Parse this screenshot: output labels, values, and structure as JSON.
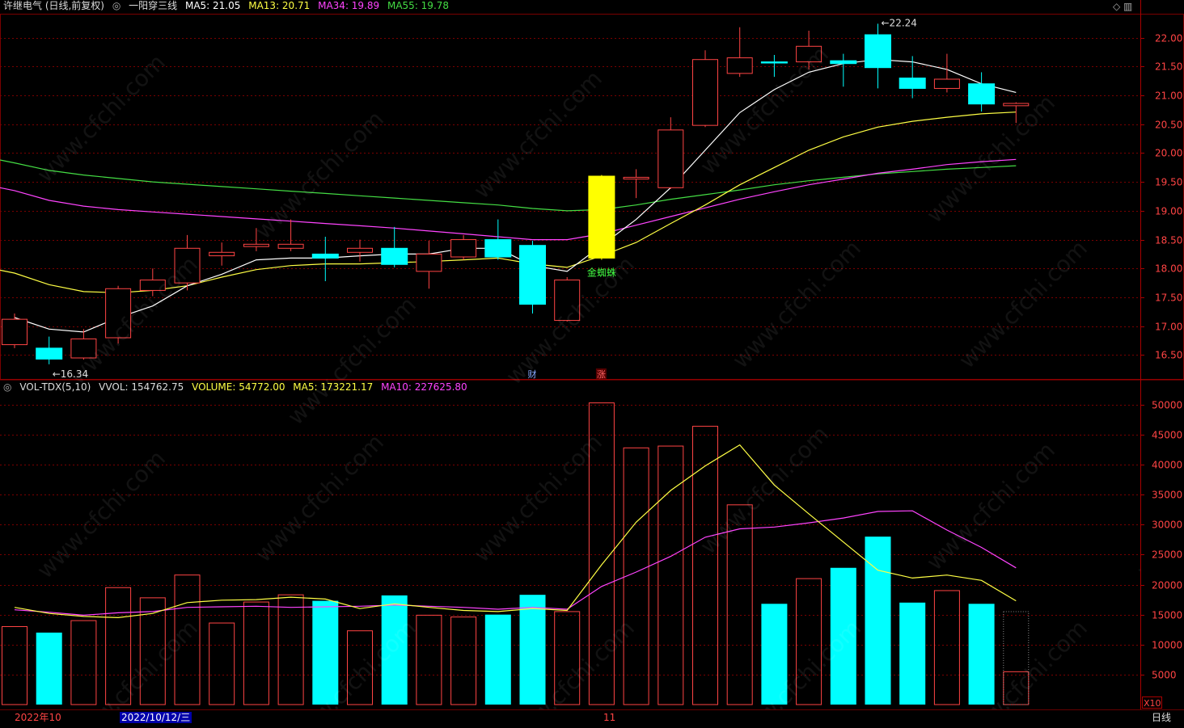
{
  "header": {
    "stock_name": "许继电气 (日线,前复权)",
    "indicator_name": "一阳穿三线",
    "ma5_label": "MA5: 21.05",
    "ma13_label": "MA13: 20.71",
    "ma34_label": "MA34: 19.89",
    "ma55_label": "MA55: 19.78",
    "ctrl_glyphs": "◇ ▥"
  },
  "volume_header": {
    "name": "VOL-TDX(5,10)",
    "vvol": "VVOL: 154762.75",
    "volume": "VOLUME: 54772.00",
    "ma5": "MA5: 173221.17",
    "ma10": "MA10: 227625.80"
  },
  "annotations": {
    "high": "22.24",
    "low": "16.34",
    "signal": "金蜘蛛",
    "marker_cai": "财",
    "marker_zhang": "涨"
  },
  "colors": {
    "up": "#ff4444",
    "down": "#00ffff",
    "signal_bar": "#ffff00",
    "ma5": "#ffffff",
    "ma13": "#ffff44",
    "ma34": "#ff44ff",
    "ma55": "#44dd44",
    "grid": "#7a0000",
    "axis_text": "#ff4444"
  },
  "price_axis": [
    "22.00",
    "21.50",
    "21.00",
    "20.50",
    "20.00",
    "19.50",
    "19.00",
    "18.50",
    "18.00",
    "17.50",
    "17.00",
    "16.50"
  ],
  "volume_axis": [
    "50000",
    "45000",
    "40000",
    "35000",
    "30000",
    "25000",
    "20000",
    "15000",
    "10000",
    "5000"
  ],
  "volume_unit": "X10",
  "bottom": {
    "month_label": "2022年10",
    "date_label": "2022/10/12/三",
    "nov_label": "11",
    "period": "日线"
  },
  "watermark": "www.cfchi.com",
  "chart_data": {
    "type": "candlestick",
    "candles": [
      {
        "o": 16.68,
        "h": 17.22,
        "l": 16.62,
        "c": 17.12
      },
      {
        "o": 16.62,
        "h": 16.82,
        "l": 16.34,
        "c": 16.43
      },
      {
        "o": 16.45,
        "h": 16.95,
        "l": 16.42,
        "c": 16.78
      },
      {
        "o": 16.8,
        "h": 17.7,
        "l": 16.7,
        "c": 17.65
      },
      {
        "o": 17.62,
        "h": 18.0,
        "l": 17.52,
        "c": 17.8
      },
      {
        "o": 17.75,
        "h": 18.58,
        "l": 17.62,
        "c": 18.35
      },
      {
        "o": 18.22,
        "h": 18.45,
        "l": 18.05,
        "c": 18.28
      },
      {
        "o": 18.38,
        "h": 18.7,
        "l": 18.3,
        "c": 18.42
      },
      {
        "o": 18.35,
        "h": 18.85,
        "l": 18.3,
        "c": 18.42
      },
      {
        "o": 18.25,
        "h": 18.55,
        "l": 17.78,
        "c": 18.18
      },
      {
        "o": 18.28,
        "h": 18.5,
        "l": 18.12,
        "c": 18.35
      },
      {
        "o": 18.35,
        "h": 18.72,
        "l": 18.02,
        "c": 18.07
      },
      {
        "o": 17.95,
        "h": 18.48,
        "l": 17.65,
        "c": 18.25
      },
      {
        "o": 18.2,
        "h": 18.58,
        "l": 18.15,
        "c": 18.5
      },
      {
        "o": 18.5,
        "h": 18.85,
        "l": 18.15,
        "c": 18.2
      },
      {
        "o": 18.4,
        "h": 18.48,
        "l": 17.22,
        "c": 17.38
      },
      {
        "o": 17.1,
        "h": 17.85,
        "l": 17.08,
        "c": 17.8
      },
      {
        "o": 18.18,
        "h": 19.62,
        "l": 18.15,
        "c": 19.6
      },
      {
        "o": 19.55,
        "h": 19.72,
        "l": 19.22,
        "c": 19.58
      },
      {
        "o": 19.4,
        "h": 20.62,
        "l": 19.38,
        "c": 20.4
      },
      {
        "o": 20.48,
        "h": 21.78,
        "l": 20.45,
        "c": 21.62
      },
      {
        "o": 21.38,
        "h": 22.18,
        "l": 21.32,
        "c": 21.65
      },
      {
        "o": 21.58,
        "h": 21.7,
        "l": 21.32,
        "c": 21.56
      },
      {
        "o": 21.58,
        "h": 22.12,
        "l": 21.45,
        "c": 21.85
      },
      {
        "o": 21.6,
        "h": 21.72,
        "l": 21.15,
        "c": 21.55
      },
      {
        "o": 22.05,
        "h": 22.24,
        "l": 21.12,
        "c": 21.48
      },
      {
        "o": 21.3,
        "h": 21.68,
        "l": 20.95,
        "c": 21.12
      },
      {
        "o": 21.12,
        "h": 21.72,
        "l": 21.05,
        "c": 21.28
      },
      {
        "o": 21.2,
        "h": 21.4,
        "l": 20.72,
        "c": 20.85
      },
      {
        "o": 20.82,
        "h": 20.88,
        "l": 20.52,
        "c": 20.86
      }
    ],
    "signal_index": 17,
    "ma5": [
      17.15,
      16.95,
      16.9,
      17.15,
      17.35,
      17.7,
      17.9,
      18.15,
      18.18,
      18.18,
      18.22,
      18.25,
      18.25,
      18.35,
      18.35,
      18.05,
      17.95,
      18.4,
      18.85,
      19.4,
      20.05,
      20.7,
      21.1,
      21.4,
      21.55,
      21.62,
      21.58,
      21.45,
      21.2,
      21.05
    ],
    "ma13": [
      17.92,
      17.72,
      17.6,
      17.58,
      17.62,
      17.7,
      17.85,
      17.98,
      18.05,
      18.08,
      18.08,
      18.1,
      18.12,
      18.15,
      18.18,
      18.08,
      18.02,
      18.22,
      18.45,
      18.78,
      19.1,
      19.45,
      19.75,
      20.05,
      20.28,
      20.45,
      20.55,
      20.62,
      20.68,
      20.71
    ],
    "ma34": [
      19.35,
      19.18,
      19.08,
      19.02,
      18.98,
      18.94,
      18.9,
      18.86,
      18.82,
      18.78,
      18.74,
      18.7,
      18.65,
      18.6,
      18.55,
      18.5,
      18.5,
      18.6,
      18.75,
      18.9,
      19.05,
      19.2,
      19.33,
      19.45,
      19.55,
      19.65,
      19.72,
      19.8,
      19.85,
      19.89
    ],
    "ma55": [
      19.83,
      19.7,
      19.62,
      19.56,
      19.5,
      19.46,
      19.42,
      19.38,
      19.34,
      19.3,
      19.26,
      19.22,
      19.18,
      19.14,
      19.1,
      19.04,
      19.0,
      19.02,
      19.1,
      19.2,
      19.28,
      19.36,
      19.45,
      19.52,
      19.58,
      19.64,
      19.68,
      19.72,
      19.75,
      19.78
    ],
    "volumes": [
      13000,
      12000,
      14000,
      19500,
      17800,
      21600,
      13600,
      17100,
      18300,
      17300,
      12300,
      18200,
      14900,
      14600,
      15000,
      18300,
      15500,
      50300,
      42800,
      43100,
      46400,
      33300,
      16800,
      21000,
      22800,
      28000,
      17000,
      19000,
      16800,
      5477
    ],
    "vol_ma5": [
      16200,
      15200,
      14700,
      14500,
      15200,
      17000,
      17400,
      17500,
      17900,
      17600,
      16000,
      16800,
      16200,
      15700,
      15500,
      16000,
      15700,
      23300,
      30400,
      35700,
      39800,
      43300,
      36600,
      31800,
      27100,
      22400,
      21100,
      21600,
      20700,
      17300
    ],
    "vol_ma10": [
      15800,
      15400,
      14900,
      15300,
      15500,
      16200,
      16300,
      16400,
      16200,
      16300,
      16400,
      16600,
      16400,
      16200,
      15900,
      16200,
      15900,
      19700,
      22100,
      24700,
      27900,
      29300,
      29600,
      30300,
      31100,
      32200,
      32300,
      29100,
      26200,
      22800
    ],
    "price_range": [
      16.1,
      22.4
    ],
    "volume_range": [
      0,
      52000
    ]
  }
}
